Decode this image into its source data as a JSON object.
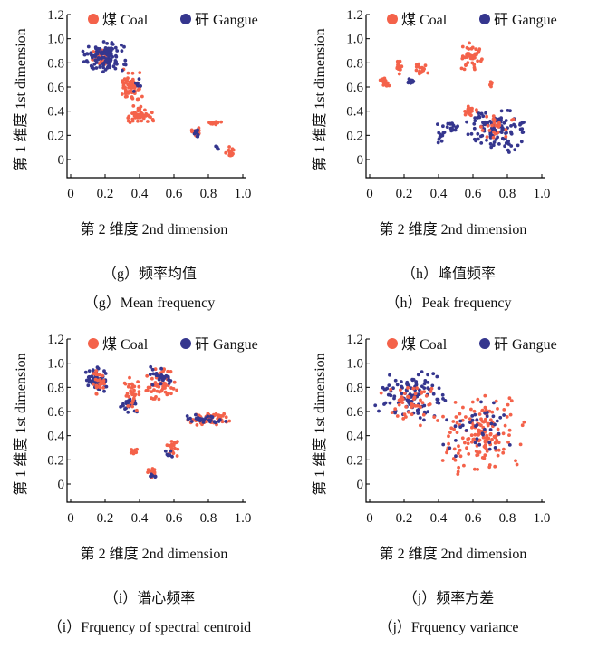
{
  "colors": {
    "coal": "#f4624a",
    "gangue": "#35368e"
  },
  "chart_data": [
    {
      "type": "scatter",
      "xlabel": "第 2 维度 2nd dimension",
      "ylabel": "第 1 维度 1st dimension",
      "xlim": [
        0,
        1.0
      ],
      "ylim": [
        0,
        1.2
      ],
      "xticks": [
        "0",
        "0.2",
        "0.4",
        "0.6",
        "0.8",
        "1.0"
      ],
      "yticks": [
        "0",
        "0.2",
        "0.4",
        "0.6",
        "0.8",
        "1.0",
        "1.2"
      ],
      "legend": [
        "煤 Coal",
        "矸 Gangue"
      ],
      "legend_position": "top",
      "caption_cn": "（g）频率均值",
      "caption_en": "（g）Mean frequency",
      "clusters": [
        {
          "series": "煤 Coal",
          "x": [
            0.28,
            0.42
          ],
          "y": [
            0.45,
            0.75
          ],
          "n": 70
        },
        {
          "series": "煤 Coal",
          "x": [
            0.33,
            0.48
          ],
          "y": [
            0.28,
            0.45
          ],
          "n": 50
        },
        {
          "series": "煤 Coal",
          "x": [
            0.1,
            0.25
          ],
          "y": [
            0.78,
            0.92
          ],
          "n": 35
        },
        {
          "series": "矸 Gangue",
          "x": [
            0.05,
            0.35
          ],
          "y": [
            0.72,
            0.98
          ],
          "n": 110
        },
        {
          "series": "矸 Gangue",
          "x": [
            0.36,
            0.42
          ],
          "y": [
            0.55,
            0.75
          ],
          "n": 8
        },
        {
          "series": "煤 Coal",
          "x": [
            0.7,
            0.77
          ],
          "y": [
            0.18,
            0.28
          ],
          "n": 20
        },
        {
          "series": "矸 Gangue",
          "x": [
            0.7,
            0.76
          ],
          "y": [
            0.18,
            0.26
          ],
          "n": 8
        },
        {
          "series": "煤 Coal",
          "x": [
            0.8,
            0.88
          ],
          "y": [
            0.28,
            0.33
          ],
          "n": 15
        },
        {
          "series": "煤 Coal",
          "x": [
            0.9,
            0.96
          ],
          "y": [
            0.02,
            0.12
          ],
          "n": 15
        },
        {
          "series": "矸 Gangue",
          "x": [
            0.84,
            0.86
          ],
          "y": [
            0.08,
            0.12
          ],
          "n": 4
        }
      ]
    },
    {
      "type": "scatter",
      "xlabel": "第 2 维度 2nd dimension",
      "ylabel": "第 1 维度 1st dimension",
      "xlim": [
        0,
        1.0
      ],
      "ylim": [
        0,
        1.2
      ],
      "xticks": [
        "0",
        "0.2",
        "0.4",
        "0.6",
        "0.8",
        "1.0"
      ],
      "yticks": [
        "0",
        "0.2",
        "0.4",
        "0.6",
        "0.8",
        "1.0",
        "1.2"
      ],
      "legend": [
        "煤 Coal",
        "矸 Gangue"
      ],
      "legend_position": "top",
      "caption_cn": "（h）峰值频率",
      "caption_en": "（h）Peak frequency",
      "clusters": [
        {
          "series": "煤 Coal",
          "x": [
            0.06,
            0.12
          ],
          "y": [
            0.58,
            0.68
          ],
          "n": 18
        },
        {
          "series": "煤 Coal",
          "x": [
            0.15,
            0.2
          ],
          "y": [
            0.7,
            0.84
          ],
          "n": 15
        },
        {
          "series": "煤 Coal",
          "x": [
            0.26,
            0.34
          ],
          "y": [
            0.68,
            0.8
          ],
          "n": 18
        },
        {
          "series": "矸 Gangue",
          "x": [
            0.22,
            0.26
          ],
          "y": [
            0.6,
            0.68
          ],
          "n": 10
        },
        {
          "series": "煤 Coal",
          "x": [
            0.52,
            0.66
          ],
          "y": [
            0.7,
            0.98
          ],
          "n": 45
        },
        {
          "series": "煤 Coal",
          "x": [
            0.53,
            0.63
          ],
          "y": [
            0.35,
            0.45
          ],
          "n": 20
        },
        {
          "series": "煤 Coal",
          "x": [
            0.68,
            0.72
          ],
          "y": [
            0.58,
            0.66
          ],
          "n": 6
        },
        {
          "series": "矸 Gangue",
          "x": [
            0.44,
            0.52
          ],
          "y": [
            0.22,
            0.32
          ],
          "n": 18
        },
        {
          "series": "矸 Gangue",
          "x": [
            0.38,
            0.44
          ],
          "y": [
            0.12,
            0.3
          ],
          "n": 12
        },
        {
          "series": "矸 Gangue",
          "x": [
            0.55,
            0.92
          ],
          "y": [
            0.05,
            0.45
          ],
          "n": 120
        },
        {
          "series": "煤 Coal",
          "x": [
            0.6,
            0.85
          ],
          "y": [
            0.15,
            0.4
          ],
          "n": 25
        }
      ]
    },
    {
      "type": "scatter",
      "xlabel": "第 2 维度 2nd dimension",
      "ylabel": "第 1 维度 1st dimension",
      "xlim": [
        0,
        1.0
      ],
      "ylim": [
        0,
        1.2
      ],
      "xticks": [
        "0",
        "0.2",
        "0.4",
        "0.6",
        "0.8",
        "1.0"
      ],
      "yticks": [
        "0",
        "0.2",
        "0.4",
        "0.6",
        "0.8",
        "1.0",
        "1.2"
      ],
      "legend": [
        "煤 Coal",
        "矸 Gangue"
      ],
      "legend_position": "top",
      "caption_cn": "（i）谱心频率",
      "caption_en": "（i）Frquency of spectral centroid",
      "clusters": [
        {
          "series": "矸 Gangue",
          "x": [
            0.08,
            0.22
          ],
          "y": [
            0.75,
            0.98
          ],
          "n": 70
        },
        {
          "series": "煤 Coal",
          "x": [
            0.1,
            0.2
          ],
          "y": [
            0.72,
            0.95
          ],
          "n": 25
        },
        {
          "series": "矸 Gangue",
          "x": [
            0.28,
            0.4
          ],
          "y": [
            0.58,
            0.72
          ],
          "n": 25
        },
        {
          "series": "煤 Coal",
          "x": [
            0.3,
            0.42
          ],
          "y": [
            0.6,
            0.9
          ],
          "n": 30
        },
        {
          "series": "煤 Coal",
          "x": [
            0.42,
            0.62
          ],
          "y": [
            0.68,
            0.98
          ],
          "n": 60
        },
        {
          "series": "矸 Gangue",
          "x": [
            0.44,
            0.6
          ],
          "y": [
            0.8,
            0.98
          ],
          "n": 25
        },
        {
          "series": "煤 Coal",
          "x": [
            0.66,
            0.95
          ],
          "y": [
            0.48,
            0.6
          ],
          "n": 60
        },
        {
          "series": "矸 Gangue",
          "x": [
            0.66,
            0.95
          ],
          "y": [
            0.48,
            0.58
          ],
          "n": 25
        },
        {
          "series": "煤 Coal",
          "x": [
            0.34,
            0.4
          ],
          "y": [
            0.24,
            0.3
          ],
          "n": 10
        },
        {
          "series": "煤 Coal",
          "x": [
            0.55,
            0.63
          ],
          "y": [
            0.22,
            0.38
          ],
          "n": 20
        },
        {
          "series": "矸 Gangue",
          "x": [
            0.54,
            0.6
          ],
          "y": [
            0.22,
            0.3
          ],
          "n": 6
        },
        {
          "series": "煤 Coal",
          "x": [
            0.44,
            0.5
          ],
          "y": [
            0.05,
            0.15
          ],
          "n": 14
        },
        {
          "series": "矸 Gangue",
          "x": [
            0.45,
            0.5
          ],
          "y": [
            0.05,
            0.1
          ],
          "n": 6
        }
      ]
    },
    {
      "type": "scatter",
      "xlabel": "第 2 维度 2nd dimension",
      "ylabel": "第 1 维度 1st dimension",
      "xlim": [
        0,
        1.0
      ],
      "ylim": [
        0,
        1.2
      ],
      "xticks": [
        "0",
        "0.2",
        "0.4",
        "0.6",
        "0.8",
        "1.0"
      ],
      "yticks": [
        "0",
        "0.2",
        "0.4",
        "0.6",
        "0.8",
        "1.0",
        "1.2"
      ],
      "legend": [
        "煤 Coal",
        "矸 Gangue"
      ],
      "legend_position": "top",
      "caption_cn": "（j）频率方差",
      "caption_en": "（j）Frquency variance",
      "clusters": [
        {
          "series": "矸 Gangue",
          "x": [
            0.02,
            0.45
          ],
          "y": [
            0.5,
            0.95
          ],
          "n": 110
        },
        {
          "series": "煤 Coal",
          "x": [
            0.05,
            0.45
          ],
          "y": [
            0.45,
            0.9
          ],
          "n": 50
        },
        {
          "series": "煤 Coal",
          "x": [
            0.4,
            0.92
          ],
          "y": [
            0.05,
            0.75
          ],
          "n": 160
        },
        {
          "series": "矸 Gangue",
          "x": [
            0.4,
            0.85
          ],
          "y": [
            0.2,
            0.7
          ],
          "n": 40
        }
      ]
    }
  ]
}
